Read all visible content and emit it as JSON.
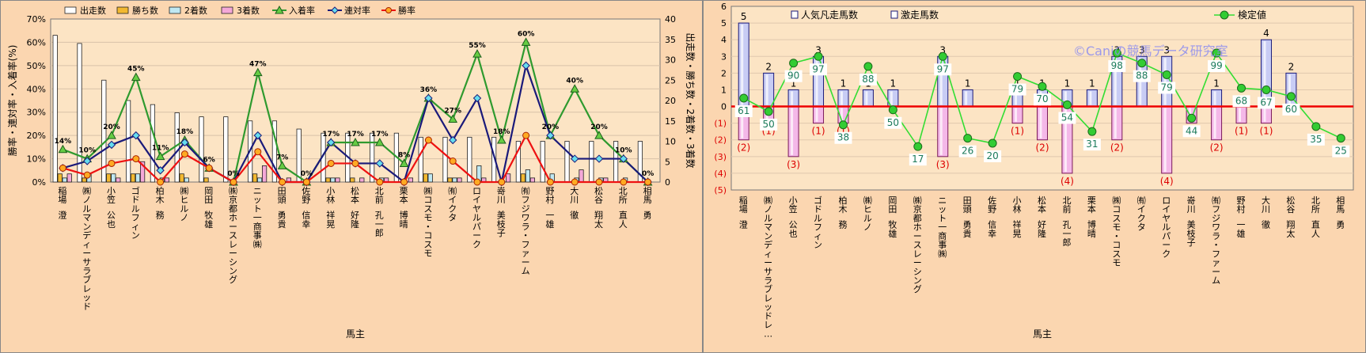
{
  "chart_data": [
    {
      "type": "bar+line",
      "title": "",
      "xlabel": "馬主",
      "ylabel_left": "勝率・連対率・入着率(%)",
      "ylabel_right": "出走数・勝ち数・2着数・3着数",
      "ylim_left": [
        0,
        70
      ],
      "yticks_left": [
        "0%",
        "10%",
        "20%",
        "30%",
        "40%",
        "50%",
        "60%",
        "70%"
      ],
      "ylim_right": [
        0,
        40
      ],
      "yticks_right": [
        "0",
        "5",
        "10",
        "15",
        "20",
        "25",
        "30",
        "35",
        "40"
      ],
      "legend_position": "top",
      "categories": [
        "稲場 澄",
        "㈱ノルマンディーサラブレッド",
        "小笠 公也",
        "ゴドルフィン",
        "柏木 務",
        "㈱ヒルノ",
        "岡田 牧雄",
        "㈱京都ホースレーシング",
        "ニット一商事㈱",
        "田頭 勇貴",
        "佐野 信幸",
        "小林 祥晃",
        "松本 好隆",
        "北前 孔一郎",
        "栗本 博晴",
        "㈱コスモ・コスモ",
        "㈲イクタ",
        "ロイヤルパーク",
        "嵜川 美枝子",
        "㈲フジワラ・ファーム",
        "野村 一雄",
        "大川 徹",
        "松谷 翔太",
        "北所 直人",
        "相馬 勇"
      ],
      "bars": [
        {
          "name": "出走数",
          "color": "#ffffff",
          "values": [
            36,
            34,
            25,
            20,
            19,
            17,
            16,
            16,
            15,
            15,
            13,
            12,
            12,
            12,
            12,
            11,
            11,
            11,
            11,
            10,
            10,
            10,
            10,
            10,
            10
          ]
        },
        {
          "name": "勝ち数",
          "color": "#f2b830",
          "values": [
            2,
            1,
            2,
            2,
            0,
            2,
            1,
            0,
            2,
            0,
            0,
            1,
            1,
            0,
            0,
            2,
            1,
            0,
            0,
            2,
            0,
            0,
            0,
            0,
            0
          ]
        },
        {
          "name": "2着数",
          "color": "#bfe8f2",
          "values": [
            1,
            2,
            2,
            2,
            1,
            1,
            0,
            0,
            1,
            0,
            0,
            1,
            0,
            1,
            0,
            2,
            1,
            4,
            0,
            3,
            2,
            1,
            1,
            1,
            0
          ]
        },
        {
          "name": "3着数",
          "color": "#f4a8d8",
          "values": [
            2,
            0,
            1,
            5,
            1,
            0,
            0,
            0,
            4,
            1,
            0,
            1,
            1,
            1,
            1,
            0,
            1,
            1,
            2,
            1,
            0,
            3,
            1,
            0,
            0
          ]
        }
      ],
      "lines": [
        {
          "name": "入着率",
          "color": "#2f9a2f",
          "marker": "triangle",
          "values": [
            14,
            10,
            20,
            45,
            11,
            18,
            6,
            0,
            47,
            7,
            0,
            17,
            17,
            17,
            8,
            36,
            27,
            55,
            18,
            60,
            20,
            40,
            20,
            10,
            0
          ]
        },
        {
          "name": "連対率",
          "color": "#1a1a7a",
          "marker": "diamond",
          "values": [
            6,
            9,
            16,
            20,
            5,
            17,
            6,
            0,
            20,
            0,
            0,
            17,
            8,
            8,
            0,
            36,
            18,
            36,
            0,
            50,
            20,
            10,
            10,
            10,
            0
          ]
        },
        {
          "name": "勝率",
          "color": "#ee1111",
          "marker": "circle",
          "values": [
            6,
            3,
            8,
            10,
            0,
            12,
            6,
            0,
            13,
            0,
            0,
            8,
            8,
            0,
            0,
            18,
            9,
            0,
            0,
            20,
            0,
            0,
            0,
            0,
            0
          ]
        }
      ],
      "point_labels": [
        "14%",
        "10%",
        "20%",
        "45%",
        "11%",
        "18%",
        "6%",
        "0%",
        "47%",
        "7%",
        "0%",
        "17%",
        "17%",
        "17%",
        "8%",
        "36%",
        "27%",
        "55%",
        "18%",
        "60%",
        "20%",
        "40%",
        "20%",
        "10%",
        "0%"
      ]
    },
    {
      "type": "bar+line",
      "title": "",
      "xlabel": "馬主",
      "ylim": [
        -5,
        6
      ],
      "yticks_left": [
        "(5)",
        "(4)",
        "(3)",
        "(2)",
        "(1)",
        "0",
        "1",
        "2",
        "3",
        "4",
        "5",
        "6"
      ],
      "legend_position": "top",
      "watermark": "©Caniの競馬データ研究室",
      "categories": [
        "稲場 澄",
        "㈱ノルマンディーサラブレッドレ…",
        "小笠 公也",
        "ゴドルフィン",
        "柏木 務",
        "㈱ヒルノ",
        "岡田 牧雄",
        "㈱京都ホースレーシング",
        "ニット一商事㈱",
        "田頭 勇貴",
        "佐野 信幸",
        "小林 祥晃",
        "松本 好隆",
        "北前 孔一郎",
        "栗本 博晴",
        "㈱コスモ・コスモ",
        "㈲イクタ",
        "ロイヤルパーク",
        "嵜川 美枝子",
        "㈲フジワラ・ファーム",
        "野村 一雄",
        "大川 徹",
        "松谷 翔太",
        "北所 直人",
        "相馬 勇"
      ],
      "bars": [
        {
          "name": "人気凡走馬数",
          "color": "#c8ccf4",
          "values": [
            5,
            2,
            1,
            3,
            1,
            1,
            1,
            0,
            3,
            1,
            0,
            1,
            1,
            1,
            1,
            3,
            3,
            3,
            0,
            1,
            0,
            4,
            2,
            0,
            0
          ]
        },
        {
          "name": "激走馬数",
          "color": "#f4b8e8",
          "values": [
            -2,
            -1,
            -3,
            -1,
            -1,
            0,
            0,
            0,
            -3,
            0,
            0,
            -1,
            -2,
            -4,
            0,
            -2,
            0,
            -4,
            -1,
            -2,
            -1,
            -1,
            0,
            0,
            0
          ]
        }
      ],
      "positive_labels": [
        "5",
        "2",
        "1",
        "3",
        "1",
        "1",
        "1",
        "",
        "3",
        "1",
        "",
        "1",
        "1",
        "1",
        "1",
        "3",
        "3",
        "3",
        "",
        "1",
        "",
        "4",
        "2",
        "",
        ""
      ],
      "negative_labels": [
        "(2)",
        "(1)",
        "(3)",
        "(1)",
        "(1)",
        "",
        "",
        "",
        "(3)",
        "",
        "",
        "(1)",
        "(2)",
        "(4)",
        "",
        "(2)",
        "",
        "(4)",
        "(1)",
        "(2)",
        "(1)",
        "(1)",
        "",
        "",
        ""
      ],
      "line": {
        "name": "検定値",
        "color": "#33dd33",
        "marker": "circle",
        "values": [
          61,
          50,
          90,
          97,
          38,
          88,
          50,
          17,
          97,
          26,
          20,
          79,
          70,
          54,
          31,
          98,
          88,
          79,
          44,
          99,
          68,
          67,
          60,
          35,
          25
        ],
        "positions": [
          0.5,
          -0.3,
          2.6,
          3.0,
          -1.1,
          2.4,
          -0.2,
          -2.4,
          3.0,
          -1.9,
          -2.2,
          1.8,
          1.2,
          0.1,
          -1.5,
          3.2,
          2.6,
          1.9,
          -0.7,
          3.2,
          1.1,
          1.0,
          0.6,
          -1.2,
          -1.9
        ]
      }
    }
  ]
}
